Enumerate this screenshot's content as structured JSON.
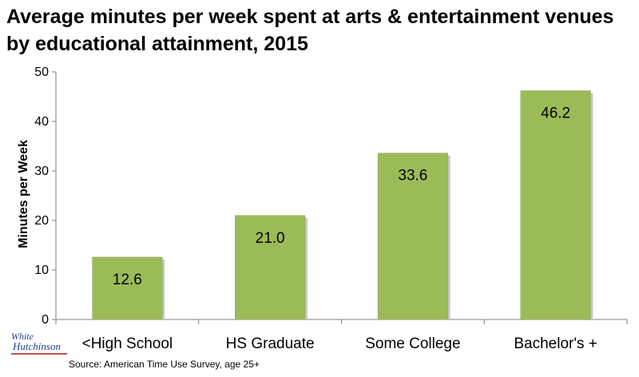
{
  "chart_data": {
    "type": "bar",
    "title": "Average minutes per week spent at arts & entertainment venues by educational attainment, 2015",
    "ylabel": "Minutes per Week",
    "xlabel": "",
    "categories": [
      "<High School",
      "HS Graduate",
      "Some College",
      "Bachelor's +"
    ],
    "values": [
      12.6,
      21.0,
      33.6,
      46.2
    ],
    "data_labels": [
      "12.6",
      "21.0",
      "33.6",
      "46.2"
    ],
    "ylim": [
      0,
      50
    ],
    "yticks": [
      0,
      10,
      20,
      30,
      40,
      50
    ],
    "grid": false,
    "bar_color": "#9bbb59"
  },
  "logo": {
    "line1": "White",
    "line2": "Hutchinson"
  },
  "source": "Source: American Time Use Survey, age 25+"
}
